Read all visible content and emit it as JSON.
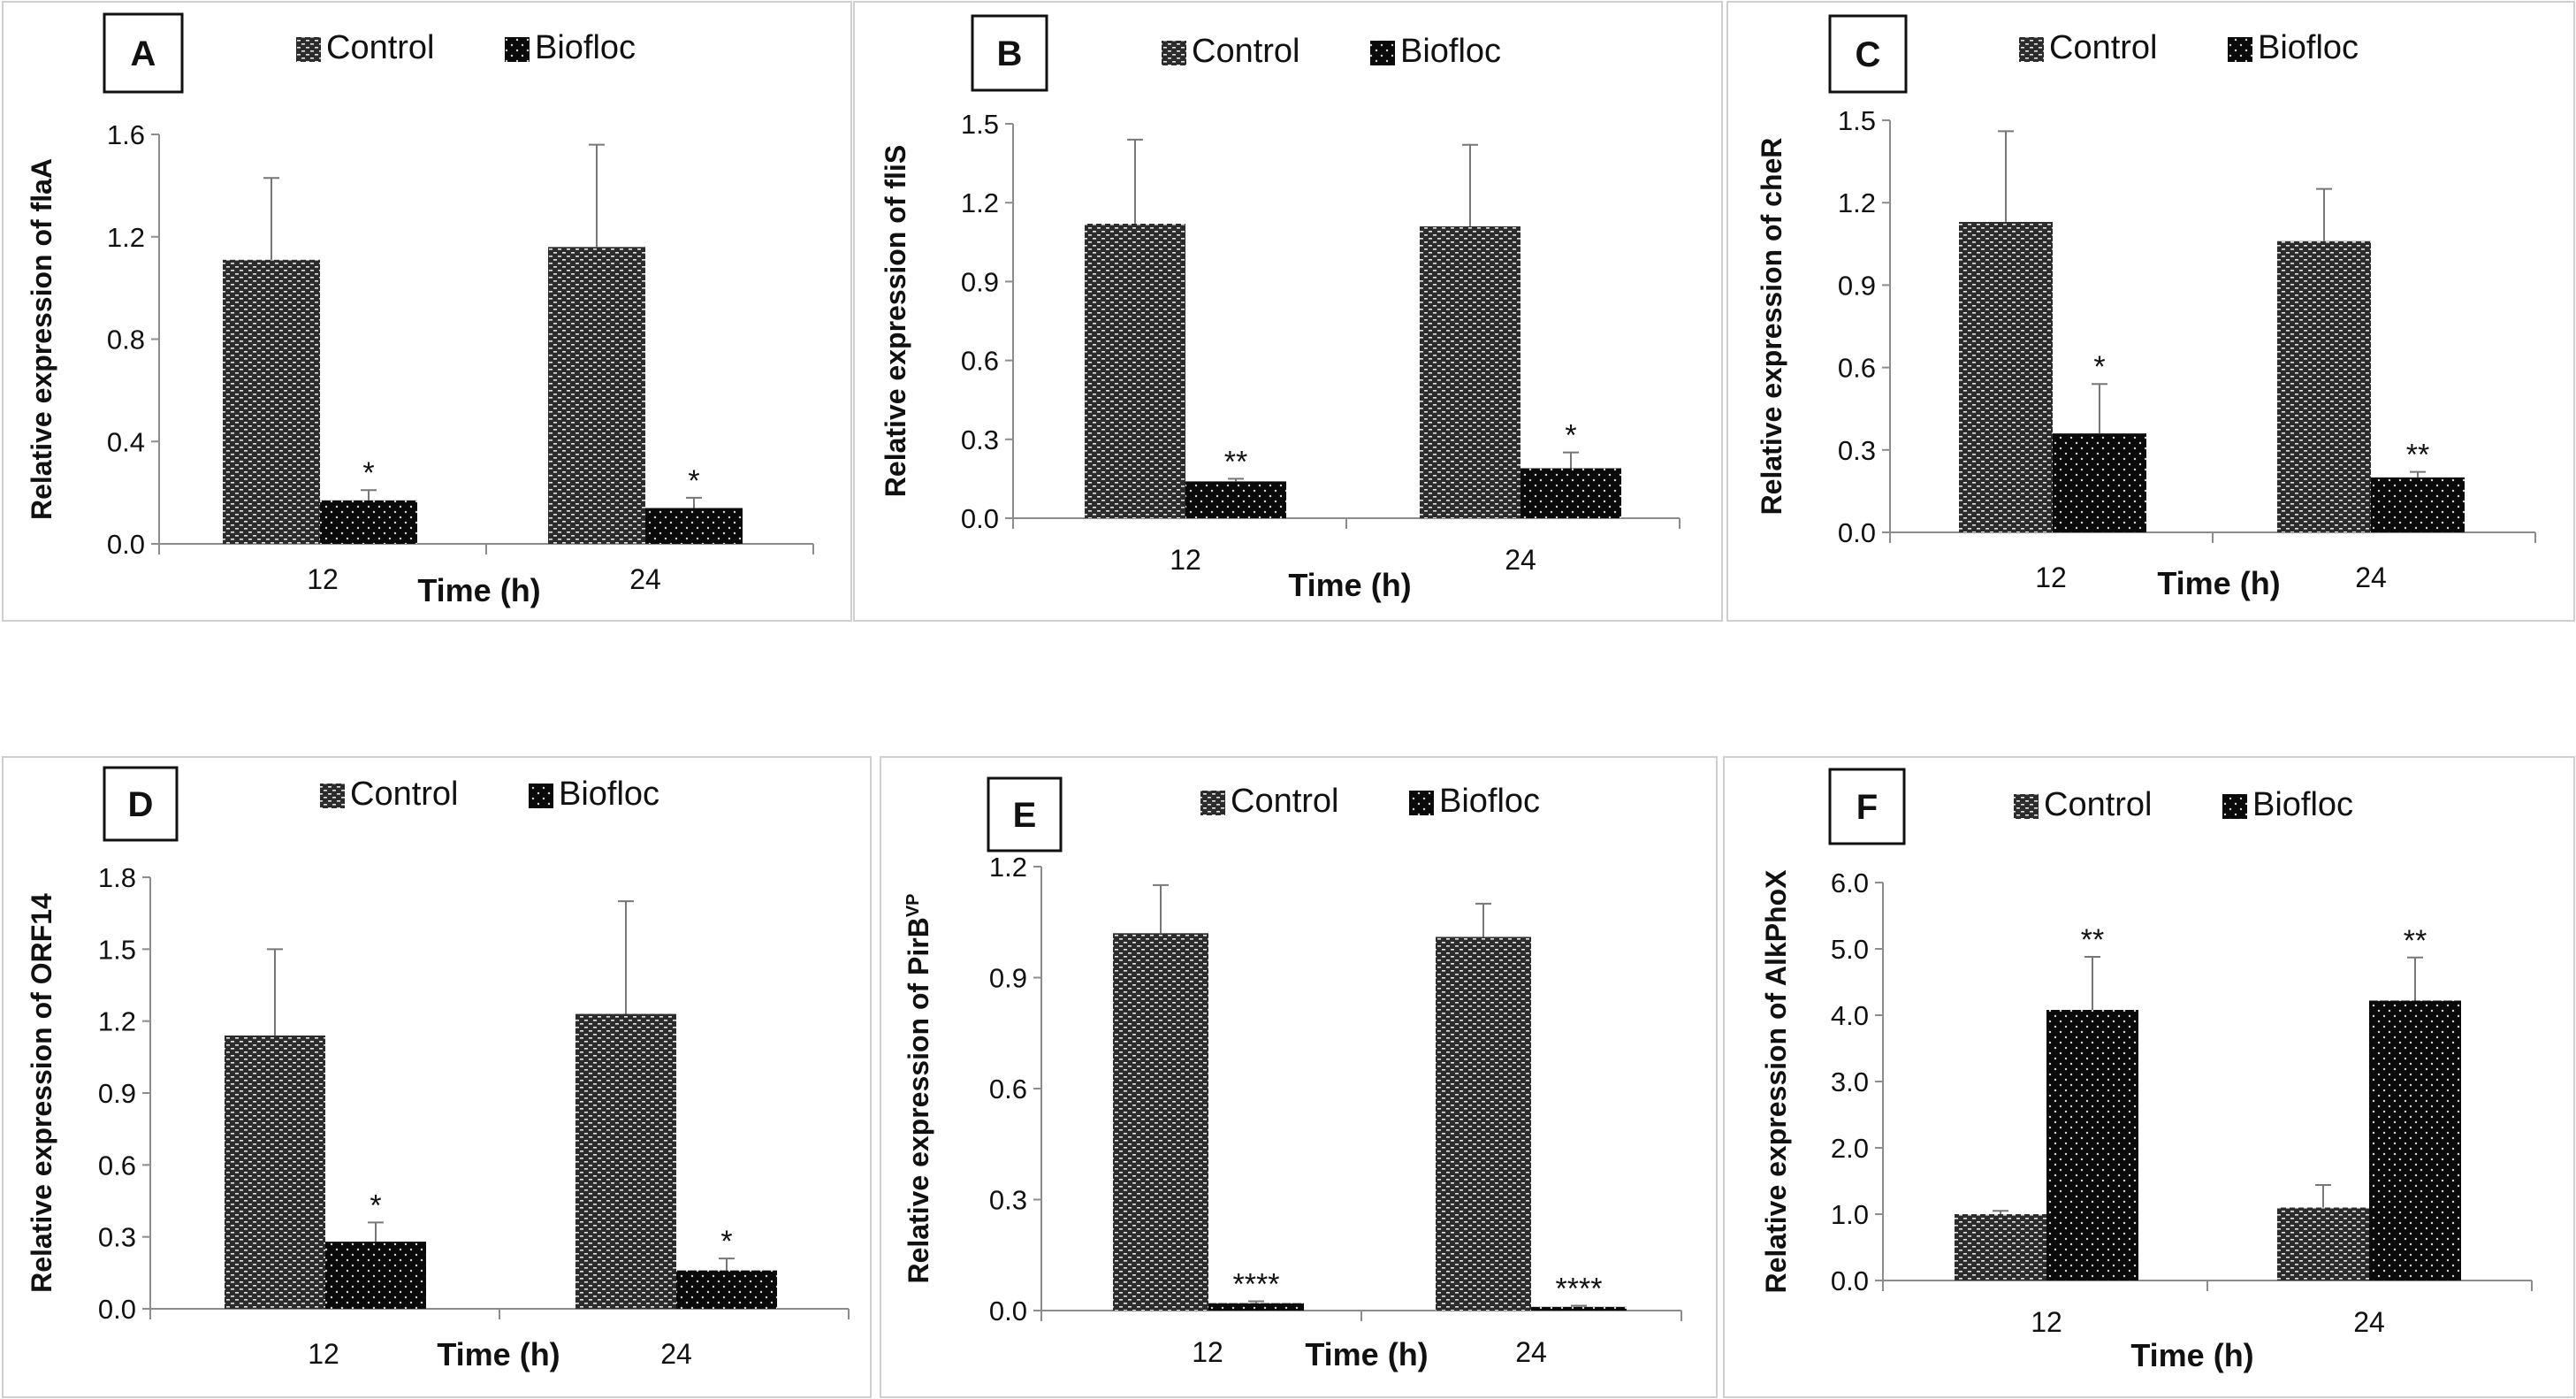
{
  "figure": {
    "legend": {
      "control": "Control",
      "biofloc": "Biofloc"
    },
    "colors": {
      "control": "#2c2c2c",
      "biofloc": "#0a0a0a",
      "axis": "#8c8c8c",
      "frame": "#cfcfcf",
      "text": "#111111"
    }
  },
  "chart_data": [
    {
      "type": "bar",
      "panel_label": "A",
      "ylabel": "Relative expression of flaA",
      "ylabel_sup": "",
      "xlabel": "Time (h)",
      "categories": [
        "12",
        "24"
      ],
      "ylim": [
        0,
        1.6
      ],
      "yticks": [
        "0.0",
        "0.4",
        "0.8",
        "1.2",
        "1.6"
      ],
      "series": [
        {
          "name": "Control",
          "values": [
            1.11,
            1.16
          ],
          "errors": [
            0.32,
            0.4
          ]
        },
        {
          "name": "Biofloc",
          "values": [
            0.17,
            0.14
          ],
          "errors": [
            0.04,
            0.04
          ]
        }
      ],
      "annotations": [
        "*",
        "*"
      ]
    },
    {
      "type": "bar",
      "panel_label": "B",
      "ylabel": "Relative expression of fliS",
      "ylabel_sup": "",
      "xlabel": "Time (h)",
      "categories": [
        "12",
        "24"
      ],
      "ylim": [
        0,
        1.5
      ],
      "yticks": [
        "0.0",
        "0.3",
        "0.6",
        "0.9",
        "1.2",
        "1.5"
      ],
      "series": [
        {
          "name": "Control",
          "values": [
            1.12,
            1.11
          ],
          "errors": [
            0.32,
            0.31
          ]
        },
        {
          "name": "Biofloc",
          "values": [
            0.14,
            0.19
          ],
          "errors": [
            0.01,
            0.06
          ]
        }
      ],
      "annotations": [
        "**",
        "*"
      ]
    },
    {
      "type": "bar",
      "panel_label": "C",
      "ylabel": "Relative expression of cheR",
      "ylabel_sup": "",
      "xlabel": "Time (h)",
      "categories": [
        "12",
        "24"
      ],
      "ylim": [
        0,
        1.5
      ],
      "yticks": [
        "0.0",
        "0.3",
        "0.6",
        "0.9",
        "1.2",
        "1.5"
      ],
      "series": [
        {
          "name": "Control",
          "values": [
            1.13,
            1.06
          ],
          "errors": [
            0.33,
            0.19
          ]
        },
        {
          "name": "Biofloc",
          "values": [
            0.36,
            0.2
          ],
          "errors": [
            0.18,
            0.02
          ]
        }
      ],
      "annotations": [
        "*",
        "**"
      ]
    },
    {
      "type": "bar",
      "panel_label": "D",
      "ylabel": "Relative expression of ORF14",
      "ylabel_sup": "",
      "xlabel": "Time (h)",
      "categories": [
        "12",
        "24"
      ],
      "ylim": [
        0,
        1.8
      ],
      "yticks": [
        "0.0",
        "0.3",
        "0.6",
        "0.9",
        "1.2",
        "1.5",
        "1.8"
      ],
      "series": [
        {
          "name": "Control",
          "values": [
            1.14,
            1.23
          ],
          "errors": [
            0.36,
            0.47
          ]
        },
        {
          "name": "Biofloc",
          "values": [
            0.28,
            0.16
          ],
          "errors": [
            0.08,
            0.05
          ]
        }
      ],
      "annotations": [
        "*",
        "*"
      ]
    },
    {
      "type": "bar",
      "panel_label": "E",
      "ylabel": "Relative expression of PirB",
      "ylabel_sup": "VP",
      "xlabel": "Time (h)",
      "categories": [
        "12",
        "24"
      ],
      "ylim": [
        0,
        1.2
      ],
      "yticks": [
        "0.0",
        "0.3",
        "0.6",
        "0.9",
        "1.2"
      ],
      "series": [
        {
          "name": "Control",
          "values": [
            1.02,
            1.01
          ],
          "errors": [
            0.13,
            0.09
          ]
        },
        {
          "name": "Biofloc",
          "values": [
            0.02,
            0.01
          ],
          "errors": [
            0.005,
            0.003
          ]
        }
      ],
      "annotations": [
        "****",
        "****"
      ]
    },
    {
      "type": "bar",
      "panel_label": "F",
      "ylabel": "Relative expression of AlkPhoX",
      "ylabel_sup": "",
      "xlabel": "Time (h)",
      "categories": [
        "12",
        "24"
      ],
      "ylim": [
        0,
        6.0
      ],
      "yticks": [
        "0.0",
        "1.0",
        "2.0",
        "3.0",
        "4.0",
        "5.0",
        "6.0"
      ],
      "series": [
        {
          "name": "Control",
          "values": [
            1.0,
            1.1
          ],
          "errors": [
            0.05,
            0.34
          ]
        },
        {
          "name": "Biofloc",
          "values": [
            4.08,
            4.22
          ],
          "errors": [
            0.8,
            0.65
          ]
        }
      ],
      "annotations": [
        "**",
        "**"
      ]
    }
  ]
}
